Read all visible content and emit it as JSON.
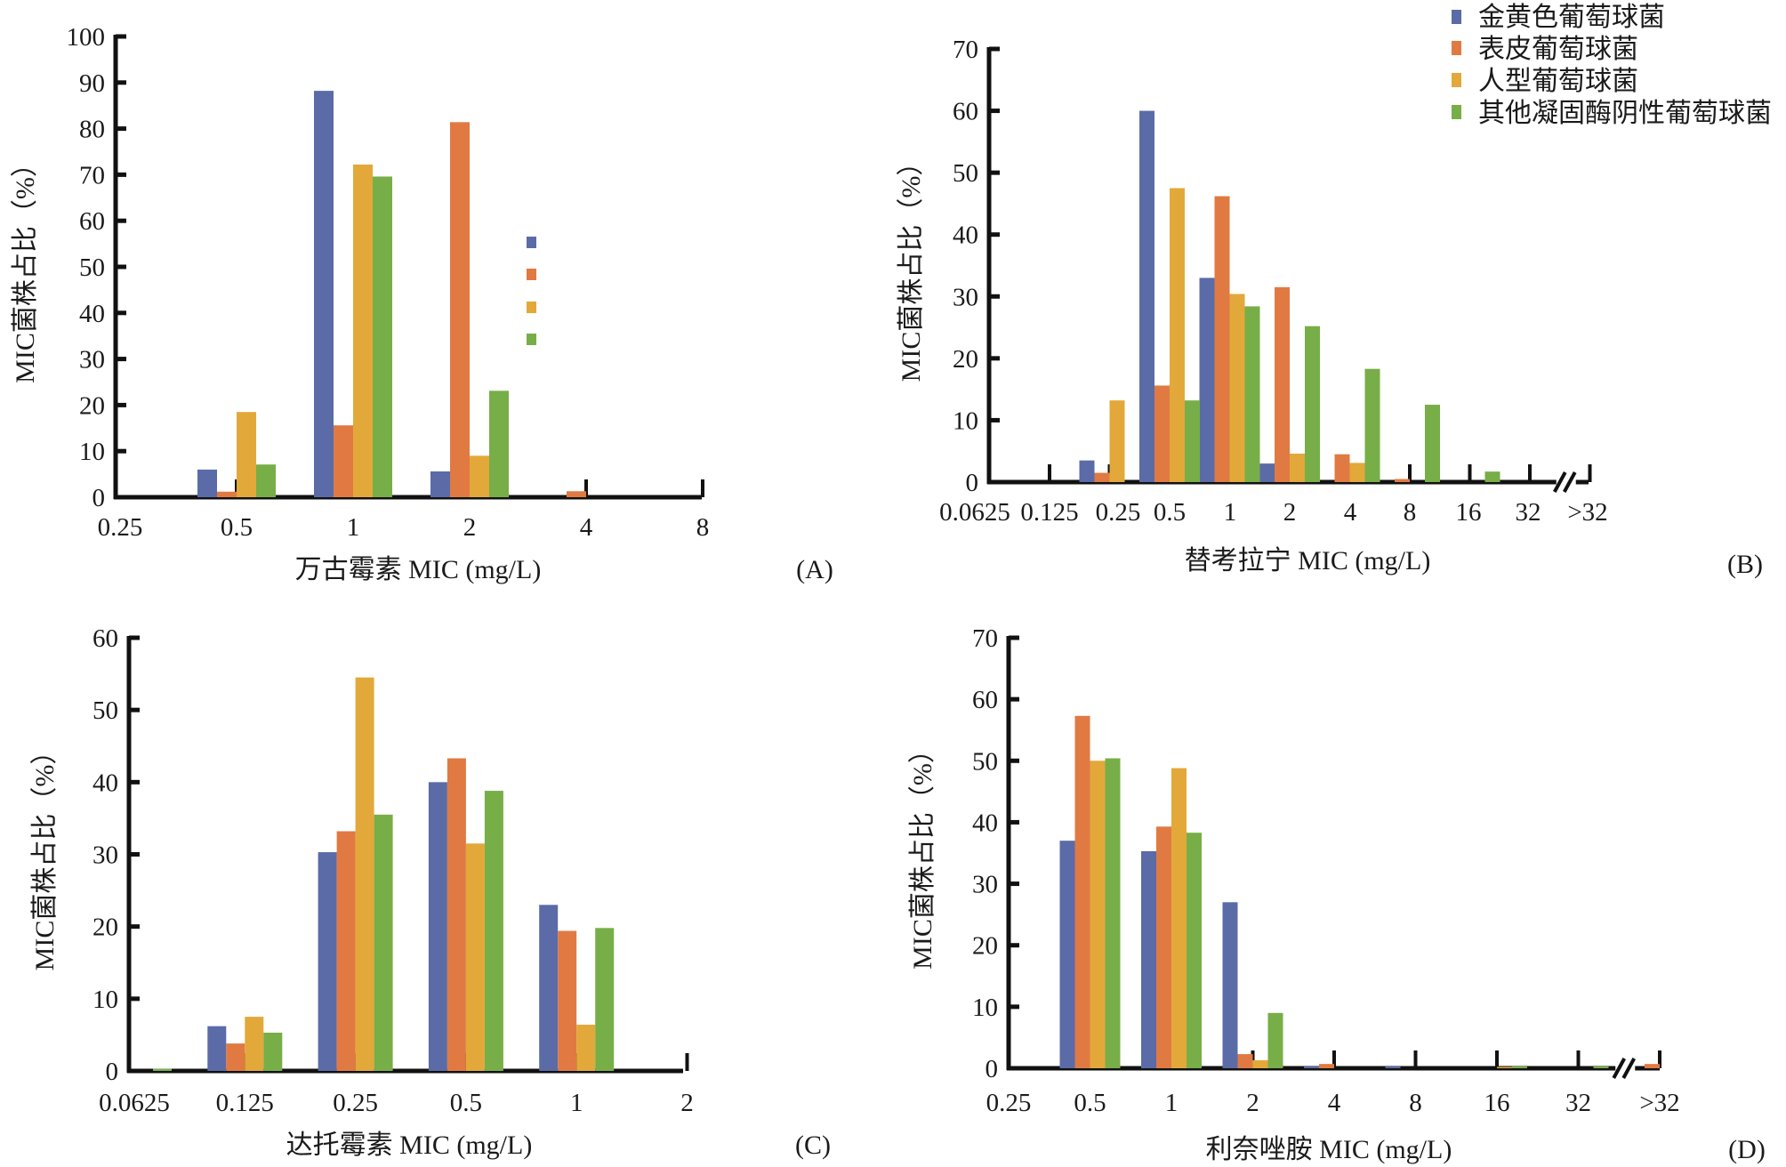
{
  "legend": {
    "items": [
      {
        "label": "金黄色葡萄球菌",
        "color": "#5B6BA8"
      },
      {
        "label": "表皮葡萄球菌",
        "color": "#E07A42"
      },
      {
        "label": "人型葡萄球菌",
        "color": "#E3A83A"
      },
      {
        "label": "其他凝固酶阴性葡萄球菌",
        "color": "#77AE48"
      }
    ]
  },
  "chart_data": [
    {
      "id": "A",
      "type": "bar",
      "panel_label": "(A)",
      "xlabel": "万古霉素 MIC (mg/L)",
      "ylabel": "MIC菌株占比（%）",
      "ylim": [
        0,
        100
      ],
      "yticks": [
        0,
        10,
        20,
        30,
        40,
        50,
        60,
        70,
        80,
        90,
        100
      ],
      "categories": [
        "0.25",
        "0.5",
        "1",
        "2",
        "4",
        "8"
      ],
      "axis_break": false,
      "legend_markers_only": true,
      "series": [
        {
          "name": "金黄色葡萄球菌",
          "values": [
            0,
            6.0,
            88.2,
            5.6,
            0,
            0
          ]
        },
        {
          "name": "表皮葡萄球菌",
          "values": [
            0,
            1.2,
            15.6,
            81.4,
            1.3,
            0
          ]
        },
        {
          "name": "人型葡萄球菌",
          "values": [
            0,
            18.5,
            72.2,
            9.0,
            0,
            0
          ]
        },
        {
          "name": "其他凝固酶阴性葡萄球菌",
          "values": [
            0,
            7.1,
            69.6,
            23.1,
            0,
            0
          ]
        }
      ]
    },
    {
      "id": "B",
      "type": "bar",
      "panel_label": "(B)",
      "xlabel": "替考拉宁 MIC (mg/L)",
      "ylabel": "MIC菌株占比（%）",
      "ylim": [
        0,
        70
      ],
      "yticks": [
        0,
        10,
        20,
        30,
        40,
        50,
        60,
        70
      ],
      "categories": [
        "0.0625",
        "0.125",
        "0.25",
        "0.5",
        "1",
        "2",
        "4",
        "8",
        "16",
        "32",
        ">32"
      ],
      "axis_break": true,
      "legend_markers_only": false,
      "series": [
        {
          "name": "金黄色葡萄球菌",
          "values": [
            0,
            0,
            3.5,
            60.0,
            33.0,
            3.0,
            0,
            0,
            0,
            0,
            0
          ]
        },
        {
          "name": "表皮葡萄球菌",
          "values": [
            0,
            0,
            1.5,
            15.6,
            46.2,
            31.5,
            4.5,
            0.5,
            0,
            0,
            0
          ]
        },
        {
          "name": "人型葡萄球菌",
          "values": [
            0,
            0,
            13.2,
            47.5,
            30.4,
            4.6,
            3.1,
            0,
            0,
            0,
            0
          ]
        },
        {
          "name": "其他凝固酶阴性葡萄球菌",
          "values": [
            0,
            0,
            0,
            13.2,
            28.4,
            25.2,
            18.3,
            12.5,
            1.7,
            0,
            0
          ]
        }
      ]
    },
    {
      "id": "C",
      "type": "bar",
      "panel_label": "(C)",
      "xlabel": "达托霉素 MIC (mg/L)",
      "ylabel": "MIC菌株占比（%）",
      "ylim": [
        0,
        60
      ],
      "yticks": [
        0,
        10,
        20,
        30,
        40,
        50,
        60
      ],
      "categories": [
        "0.0625",
        "0.125",
        "0.25",
        "0.5",
        "1",
        "2"
      ],
      "axis_break": false,
      "legend_markers_only": false,
      "series": [
        {
          "name": "金黄色葡萄球菌",
          "values": [
            0,
            6.2,
            30.3,
            40.0,
            23.0,
            0
          ]
        },
        {
          "name": "表皮葡萄球菌",
          "values": [
            0,
            3.8,
            33.2,
            43.3,
            19.4,
            0
          ]
        },
        {
          "name": "人型葡萄球菌",
          "values": [
            0,
            7.5,
            54.5,
            31.5,
            6.4,
            0
          ]
        },
        {
          "name": "其他凝固酶阴性葡萄球菌",
          "values": [
            0.3,
            5.3,
            35.5,
            38.8,
            19.8,
            0
          ]
        }
      ]
    },
    {
      "id": "D",
      "type": "bar",
      "panel_label": "(D)",
      "xlabel": "利奈唑胺 MIC (mg/L)",
      "ylabel": "MIC菌株占比（%）",
      "ylim": [
        0,
        70
      ],
      "yticks": [
        0,
        10,
        20,
        30,
        40,
        50,
        60,
        70
      ],
      "categories": [
        "0.25",
        "0.5",
        "1",
        "2",
        "4",
        "8",
        "16",
        "32",
        ">32"
      ],
      "axis_break": true,
      "legend_markers_only": false,
      "series": [
        {
          "name": "金黄色葡萄球菌",
          "values": [
            0,
            37.0,
            35.3,
            27.0,
            0.3,
            0.3,
            0,
            0,
            0
          ]
        },
        {
          "name": "表皮葡萄球菌",
          "values": [
            0,
            57.3,
            39.3,
            2.3,
            0.7,
            0,
            0,
            0,
            0.7
          ]
        },
        {
          "name": "人型葡萄球菌",
          "values": [
            0,
            50.0,
            48.8,
            1.3,
            0,
            0,
            0.2,
            0,
            0
          ]
        },
        {
          "name": "其他凝固酶阴性葡萄球菌",
          "values": [
            0,
            50.4,
            38.3,
            9.0,
            0,
            0,
            0.3,
            0.3,
            0
          ]
        }
      ]
    }
  ]
}
